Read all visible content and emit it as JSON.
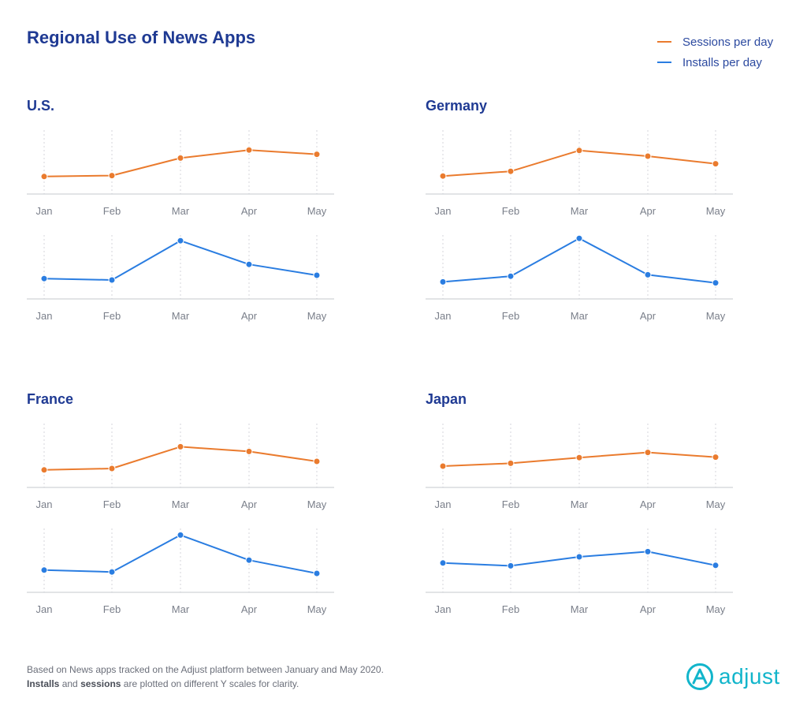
{
  "title": "Regional Use of News Apps",
  "legend": [
    {
      "label": "Sessions per day",
      "color": "#ea7b2e"
    },
    {
      "label": "Installs per day",
      "color": "#2a7de1"
    }
  ],
  "footnote": {
    "line1": "Based on News apps tracked on the Adjust platform between January and May 2020.",
    "line2_bold1": "Installs",
    "line2_mid": "and",
    "line2_bold2": "sessions",
    "line2_end": "are plotted on different Y scales for clarity."
  },
  "logo": {
    "text": "adjust",
    "color": "#12b5cb"
  },
  "chart_data": [
    {
      "type": "line",
      "title": "U.S.",
      "categories": [
        "Jan",
        "Feb",
        "Mar",
        "Apr",
        "May"
      ],
      "series": [
        {
          "name": "Sessions per day",
          "color": "#ea7b2e",
          "values": [
            0.12,
            0.14,
            0.51,
            0.68,
            0.59
          ]
        },
        {
          "name": "Installs per day",
          "color": "#2a7de1",
          "values": [
            0.18,
            0.15,
            0.98,
            0.48,
            0.25
          ]
        }
      ]
    },
    {
      "type": "line",
      "title": "Germany",
      "categories": [
        "Jan",
        "Feb",
        "Mar",
        "Apr",
        "May"
      ],
      "series": [
        {
          "name": "Sessions per day",
          "color": "#ea7b2e",
          "values": [
            0.13,
            0.23,
            0.67,
            0.55,
            0.39
          ]
        },
        {
          "name": "Installs per day",
          "color": "#2a7de1",
          "values": [
            0.11,
            0.23,
            1.03,
            0.26,
            0.09
          ]
        }
      ]
    },
    {
      "type": "line",
      "title": "France",
      "categories": [
        "Jan",
        "Feb",
        "Mar",
        "Apr",
        "May"
      ],
      "series": [
        {
          "name": "Sessions per day",
          "color": "#ea7b2e",
          "values": [
            0.12,
            0.15,
            0.61,
            0.51,
            0.3
          ]
        },
        {
          "name": "Installs per day",
          "color": "#2a7de1",
          "values": [
            0.22,
            0.18,
            0.96,
            0.43,
            0.15
          ]
        }
      ]
    },
    {
      "type": "line",
      "title": "Japan",
      "categories": [
        "Jan",
        "Feb",
        "Mar",
        "Apr",
        "May"
      ],
      "series": [
        {
          "name": "Sessions per day",
          "color": "#ea7b2e",
          "values": [
            0.2,
            0.26,
            0.38,
            0.49,
            0.39
          ]
        },
        {
          "name": "Installs per day",
          "color": "#2a7de1",
          "values": [
            0.37,
            0.31,
            0.5,
            0.61,
            0.32
          ]
        }
      ]
    }
  ]
}
